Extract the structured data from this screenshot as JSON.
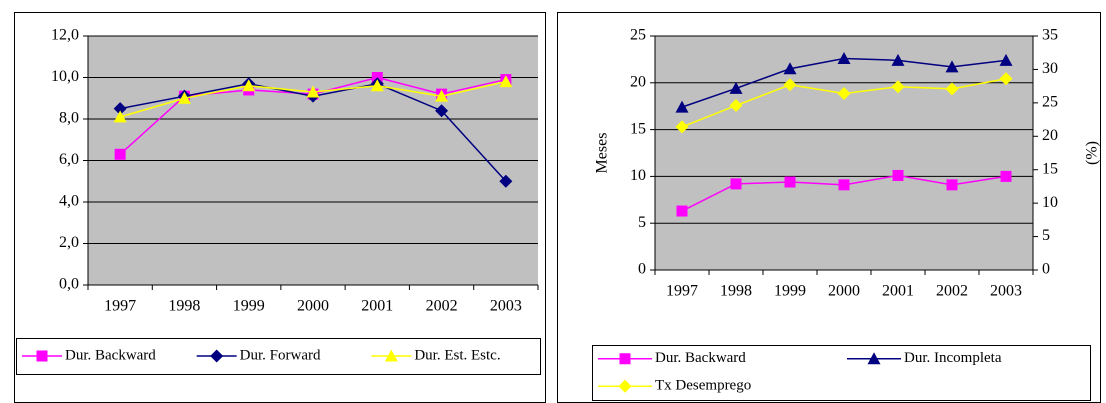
{
  "chart_data": [
    {
      "type": "line",
      "categories": [
        "1997",
        "1998",
        "1999",
        "2000",
        "2001",
        "2002",
        "2003"
      ],
      "series": [
        {
          "name": "Dur. Backward",
          "color": "#ff00ff",
          "marker": "square",
          "values": [
            6.3,
            9.1,
            9.4,
            9.2,
            10.0,
            9.2,
            9.9
          ]
        },
        {
          "name": "Dur. Forward",
          "color": "#000080",
          "marker": "diamond",
          "values": [
            8.5,
            9.1,
            9.7,
            9.1,
            9.7,
            8.4,
            5.0
          ]
        },
        {
          "name": "Dur. Est. Estc.",
          "color": "#ffff00",
          "marker": "triangle",
          "values": [
            8.1,
            9.0,
            9.6,
            9.3,
            9.6,
            9.1,
            9.8
          ]
        }
      ],
      "ylim": [
        0,
        12
      ],
      "yticks": [
        {
          "value": 0,
          "label": "0,0"
        },
        {
          "value": 2,
          "label": "2,0"
        },
        {
          "value": 4,
          "label": "4,0"
        },
        {
          "value": 6,
          "label": "6,0"
        },
        {
          "value": 8,
          "label": "8,0"
        },
        {
          "value": 10,
          "label": "10,0"
        },
        {
          "value": 12,
          "label": "12,0"
        }
      ],
      "grid": true,
      "legend": "bottom",
      "plot_background": "#c0c0c0"
    },
    {
      "type": "line",
      "categories": [
        "1997",
        "1998",
        "1999",
        "2000",
        "2001",
        "2002",
        "2003"
      ],
      "y_label": "Meses",
      "y2_label": "(%)",
      "series": [
        {
          "name": "Dur. Backward",
          "color": "#ff00ff",
          "marker": "square",
          "values": [
            6.3,
            9.2,
            9.4,
            9.1,
            10.1,
            9.1,
            10.0
          ]
        },
        {
          "name": "Dur. Incompleta",
          "color": "#000080",
          "marker": "triangle",
          "values": [
            17.4,
            19.4,
            21.5,
            22.6,
            22.4,
            21.7,
            22.4
          ]
        },
        {
          "name": "Tx Desemprego",
          "color": "#ffff00",
          "marker": "diamond",
          "axis": "y2",
          "values": [
            21.4,
            24.6,
            27.7,
            26.4,
            27.4,
            27.1,
            28.6
          ]
        }
      ],
      "ylim": [
        0,
        25
      ],
      "yticks": [
        0,
        5,
        10,
        15,
        20,
        25
      ],
      "y2lim": [
        0,
        35
      ],
      "y2ticks": [
        0,
        5,
        10,
        15,
        20,
        25,
        30,
        35
      ],
      "grid": true,
      "legend": "bottom",
      "plot_background": "#c0c0c0"
    }
  ]
}
